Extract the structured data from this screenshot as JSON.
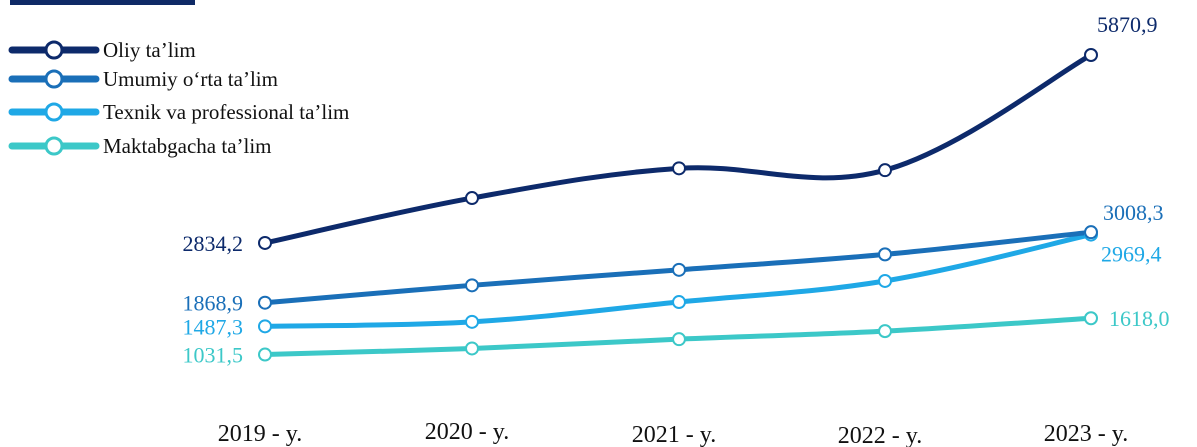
{
  "chart_data": {
    "type": "line",
    "categories": [
      "2019 - y.",
      "2020 - y.",
      "2021 - y.",
      "2022 - y.",
      "2023 - y."
    ],
    "series": [
      {
        "name": "Oliy ta’lim",
        "color": "#0d2a6b",
        "values": [
          2834.2,
          3560,
          4040,
          4010,
          5870.9
        ],
        "labels": [
          "2834,2",
          "",
          "",
          "",
          "5870,9"
        ]
      },
      {
        "name": "Umumiy o‘rta ta’lim",
        "color": "#1a6fb8",
        "values": [
          1868.9,
          2150,
          2400,
          2650,
          3008.3
        ],
        "labels": [
          "1868,9",
          "",
          "",
          "",
          "3008,3"
        ]
      },
      {
        "name": "Texnik va professional ta’lim",
        "color": "#1fa8e6",
        "values": [
          1487.3,
          1560,
          1880,
          2220,
          2969.4
        ],
        "labels": [
          "1487,3",
          "",
          "",
          "",
          "2969,4"
        ]
      },
      {
        "name": "Maktabgacha ta’lim",
        "color": "#3cc8c8",
        "values": [
          1031.5,
          1130,
          1280,
          1410,
          1618.0
        ],
        "labels": [
          "1031,5",
          "",
          "",
          "",
          "1618,0"
        ]
      }
    ],
    "legend_position": "top-left",
    "grid": false
  }
}
